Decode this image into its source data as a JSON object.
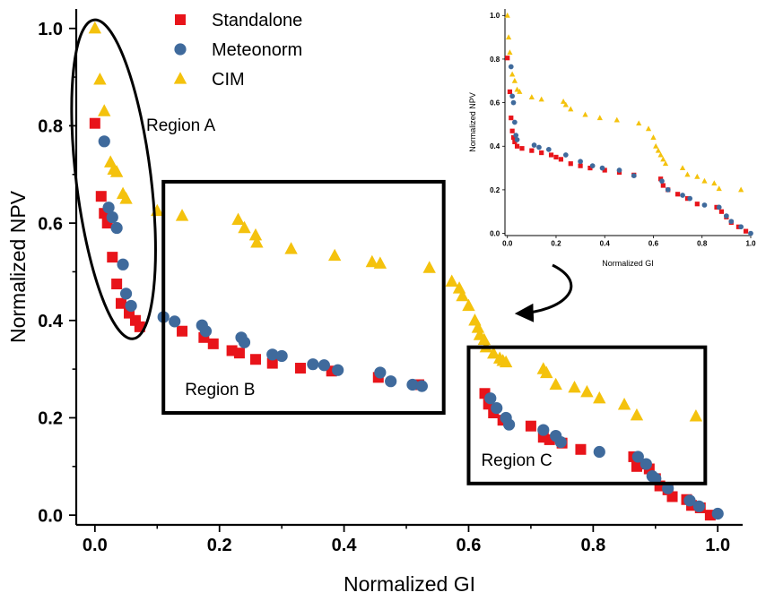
{
  "chart_data": [
    {
      "type": "scatter",
      "xlabel": "Normalized GI",
      "ylabel": "Normalized NPV",
      "xlim": [
        -0.03,
        1.04
      ],
      "ylim": [
        -0.02,
        1.04
      ],
      "xticks": [
        0.0,
        0.2,
        0.4,
        0.6,
        0.8,
        1.0
      ],
      "yticks": [
        0.0,
        0.2,
        0.4,
        0.6,
        0.8,
        1.0
      ],
      "xtick_labels": [
        "0.0",
        "0.2",
        "0.4",
        "0.6",
        "0.8",
        "1.0"
      ],
      "ytick_labels": [
        "0.0",
        "0.2",
        "0.4",
        "0.6",
        "0.8",
        "1.0"
      ],
      "grid": false,
      "legend_position": "top-left",
      "series": [
        {
          "name": "Standalone",
          "marker": "square",
          "color": "#e8141a",
          "points": [
            [
              0.0,
              0.805
            ],
            [
              0.01,
              0.655
            ],
            [
              0.015,
              0.62
            ],
            [
              0.02,
              0.6
            ],
            [
              0.028,
              0.53
            ],
            [
              0.035,
              0.475
            ],
            [
              0.042,
              0.435
            ],
            [
              0.055,
              0.415
            ],
            [
              0.065,
              0.4
            ],
            [
              0.072,
              0.387
            ],
            [
              0.14,
              0.378
            ],
            [
              0.175,
              0.365
            ],
            [
              0.19,
              0.352
            ],
            [
              0.22,
              0.338
            ],
            [
              0.232,
              0.333
            ],
            [
              0.258,
              0.32
            ],
            [
              0.285,
              0.312
            ],
            [
              0.33,
              0.302
            ],
            [
              0.38,
              0.296
            ],
            [
              0.455,
              0.283
            ],
            [
              0.52,
              0.268
            ],
            [
              0.626,
              0.25
            ],
            [
              0.632,
              0.228
            ],
            [
              0.64,
              0.21
            ],
            [
              0.655,
              0.195
            ],
            [
              0.7,
              0.183
            ],
            [
              0.72,
              0.16
            ],
            [
              0.73,
              0.155
            ],
            [
              0.75,
              0.148
            ],
            [
              0.78,
              0.135
            ],
            [
              0.865,
              0.12
            ],
            [
              0.87,
              0.1
            ],
            [
              0.878,
              0.105
            ],
            [
              0.89,
              0.095
            ],
            [
              0.9,
              0.075
            ],
            [
              0.907,
              0.06
            ],
            [
              0.92,
              0.052
            ],
            [
              0.927,
              0.038
            ],
            [
              0.95,
              0.032
            ],
            [
              0.958,
              0.02
            ],
            [
              0.972,
              0.015
            ],
            [
              0.988,
              0.0
            ]
          ]
        },
        {
          "name": "Meteonorm",
          "marker": "circle",
          "color": "#3f6a9c",
          "points": [
            [
              0.015,
              0.768
            ],
            [
              0.022,
              0.632
            ],
            [
              0.028,
              0.612
            ],
            [
              0.035,
              0.59
            ],
            [
              0.045,
              0.515
            ],
            [
              0.05,
              0.455
            ],
            [
              0.058,
              0.43
            ],
            [
              0.11,
              0.407
            ],
            [
              0.128,
              0.398
            ],
            [
              0.172,
              0.39
            ],
            [
              0.178,
              0.378
            ],
            [
              0.235,
              0.365
            ],
            [
              0.24,
              0.355
            ],
            [
              0.285,
              0.33
            ],
            [
              0.3,
              0.327
            ],
            [
              0.35,
              0.31
            ],
            [
              0.368,
              0.308
            ],
            [
              0.39,
              0.298
            ],
            [
              0.458,
              0.293
            ],
            [
              0.475,
              0.275
            ],
            [
              0.51,
              0.268
            ],
            [
              0.525,
              0.265
            ],
            [
              0.635,
              0.24
            ],
            [
              0.645,
              0.22
            ],
            [
              0.66,
              0.2
            ],
            [
              0.665,
              0.186
            ],
            [
              0.72,
              0.175
            ],
            [
              0.74,
              0.163
            ],
            [
              0.748,
              0.15
            ],
            [
              0.81,
              0.13
            ],
            [
              0.872,
              0.12
            ],
            [
              0.885,
              0.105
            ],
            [
              0.895,
              0.08
            ],
            [
              0.9,
              0.075
            ],
            [
              0.92,
              0.055
            ],
            [
              0.955,
              0.03
            ],
            [
              0.97,
              0.018
            ],
            [
              1.0,
              0.003
            ]
          ]
        },
        {
          "name": "CIM",
          "marker": "triangle",
          "color": "#f4c20d",
          "points": [
            [
              0.0,
              1.0
            ],
            [
              0.008,
              0.895
            ],
            [
              0.015,
              0.83
            ],
            [
              0.025,
              0.725
            ],
            [
              0.03,
              0.71
            ],
            [
              0.035,
              0.705
            ],
            [
              0.045,
              0.66
            ],
            [
              0.05,
              0.65
            ],
            [
              0.1,
              0.625
            ],
            [
              0.14,
              0.615
            ],
            [
              0.23,
              0.607
            ],
            [
              0.24,
              0.59
            ],
            [
              0.258,
              0.575
            ],
            [
              0.26,
              0.56
            ],
            [
              0.315,
              0.547
            ],
            [
              0.385,
              0.533
            ],
            [
              0.445,
              0.52
            ],
            [
              0.458,
              0.517
            ],
            [
              0.537,
              0.508
            ],
            [
              0.573,
              0.48
            ],
            [
              0.585,
              0.466
            ],
            [
              0.59,
              0.45
            ],
            [
              0.6,
              0.43
            ],
            [
              0.61,
              0.4
            ],
            [
              0.615,
              0.385
            ],
            [
              0.618,
              0.37
            ],
            [
              0.625,
              0.36
            ],
            [
              0.628,
              0.345
            ],
            [
              0.64,
              0.332
            ],
            [
              0.65,
              0.322
            ],
            [
              0.655,
              0.317
            ],
            [
              0.66,
              0.314
            ],
            [
              0.72,
              0.3
            ],
            [
              0.725,
              0.292
            ],
            [
              0.74,
              0.268
            ],
            [
              0.77,
              0.262
            ],
            [
              0.79,
              0.253
            ],
            [
              0.81,
              0.24
            ],
            [
              0.85,
              0.227
            ],
            [
              0.87,
              0.205
            ],
            [
              0.965,
              0.203
            ]
          ]
        }
      ],
      "annotations": [
        {
          "type": "ellipse",
          "label": "Region A",
          "cx": 0.03,
          "cy": 0.69,
          "rx": 0.06,
          "ry": 0.33,
          "rotation_deg": -7
        },
        {
          "type": "rect",
          "label": "Region B",
          "x0": 0.11,
          "y0": 0.21,
          "x1": 0.56,
          "y1": 0.685
        },
        {
          "type": "rect",
          "label": "Region C",
          "x0": 0.6,
          "y0": 0.065,
          "x1": 0.98,
          "y1": 0.345
        }
      ]
    },
    {
      "type": "scatter",
      "role": "inset",
      "xlabel": "Normalized GI",
      "ylabel": "Normalized NPV",
      "xlim": [
        -0.01,
        1.0
      ],
      "ylim": [
        -0.01,
        1.03
      ],
      "xticks": [
        0.0,
        0.2,
        0.4,
        0.6,
        0.8,
        1.0
      ],
      "yticks": [
        0.0,
        0.2,
        0.4,
        0.6,
        0.8,
        1.0
      ],
      "xtick_labels": [
        "0.0",
        "0.2",
        "0.4",
        "0.6",
        "0.8",
        "1.0"
      ],
      "ytick_labels": [
        "0.0",
        "0.2",
        "0.4",
        "0.6",
        "0.8",
        "1.0"
      ],
      "grid": false,
      "series": [
        {
          "name": "Standalone",
          "marker": "square",
          "color": "#e8141a",
          "points": [
            [
              0.0,
              0.805
            ],
            [
              0.01,
              0.65
            ],
            [
              0.015,
              0.53
            ],
            [
              0.02,
              0.47
            ],
            [
              0.025,
              0.44
            ],
            [
              0.03,
              0.42
            ],
            [
              0.04,
              0.4
            ],
            [
              0.06,
              0.39
            ],
            [
              0.1,
              0.38
            ],
            [
              0.14,
              0.37
            ],
            [
              0.18,
              0.36
            ],
            [
              0.2,
              0.35
            ],
            [
              0.22,
              0.34
            ],
            [
              0.26,
              0.32
            ],
            [
              0.3,
              0.31
            ],
            [
              0.34,
              0.3
            ],
            [
              0.4,
              0.29
            ],
            [
              0.46,
              0.28
            ],
            [
              0.52,
              0.268
            ],
            [
              0.63,
              0.25
            ],
            [
              0.64,
              0.22
            ],
            [
              0.66,
              0.2
            ],
            [
              0.7,
              0.18
            ],
            [
              0.74,
              0.16
            ],
            [
              0.78,
              0.135
            ],
            [
              0.86,
              0.12
            ],
            [
              0.88,
              0.1
            ],
            [
              0.9,
              0.075
            ],
            [
              0.92,
              0.05
            ],
            [
              0.95,
              0.03
            ],
            [
              0.98,
              0.01
            ]
          ]
        },
        {
          "name": "Meteonorm",
          "marker": "circle",
          "color": "#3f6a9c",
          "points": [
            [
              0.015,
              0.765
            ],
            [
              0.02,
              0.63
            ],
            [
              0.025,
              0.6
            ],
            [
              0.03,
              0.51
            ],
            [
              0.035,
              0.45
            ],
            [
              0.04,
              0.43
            ],
            [
              0.11,
              0.405
            ],
            [
              0.13,
              0.395
            ],
            [
              0.17,
              0.385
            ],
            [
              0.24,
              0.36
            ],
            [
              0.3,
              0.33
            ],
            [
              0.35,
              0.31
            ],
            [
              0.39,
              0.3
            ],
            [
              0.46,
              0.29
            ],
            [
              0.52,
              0.265
            ],
            [
              0.635,
              0.24
            ],
            [
              0.66,
              0.2
            ],
            [
              0.72,
              0.175
            ],
            [
              0.75,
              0.16
            ],
            [
              0.81,
              0.13
            ],
            [
              0.87,
              0.12
            ],
            [
              0.9,
              0.08
            ],
            [
              0.92,
              0.055
            ],
            [
              0.96,
              0.03
            ],
            [
              1.0,
              0.0
            ]
          ]
        },
        {
          "name": "CIM",
          "marker": "triangle",
          "color": "#f4c20d",
          "points": [
            [
              0.0,
              1.0
            ],
            [
              0.005,
              0.9
            ],
            [
              0.01,
              0.83
            ],
            [
              0.02,
              0.73
            ],
            [
              0.03,
              0.7
            ],
            [
              0.04,
              0.66
            ],
            [
              0.05,
              0.65
            ],
            [
              0.1,
              0.625
            ],
            [
              0.14,
              0.615
            ],
            [
              0.23,
              0.605
            ],
            [
              0.24,
              0.59
            ],
            [
              0.26,
              0.57
            ],
            [
              0.32,
              0.545
            ],
            [
              0.38,
              0.53
            ],
            [
              0.45,
              0.52
            ],
            [
              0.54,
              0.505
            ],
            [
              0.58,
              0.48
            ],
            [
              0.6,
              0.44
            ],
            [
              0.61,
              0.4
            ],
            [
              0.62,
              0.38
            ],
            [
              0.63,
              0.36
            ],
            [
              0.64,
              0.34
            ],
            [
              0.65,
              0.32
            ],
            [
              0.72,
              0.3
            ],
            [
              0.74,
              0.27
            ],
            [
              0.78,
              0.26
            ],
            [
              0.81,
              0.24
            ],
            [
              0.85,
              0.23
            ],
            [
              0.87,
              0.205
            ],
            [
              0.96,
              0.2
            ]
          ]
        }
      ]
    }
  ]
}
